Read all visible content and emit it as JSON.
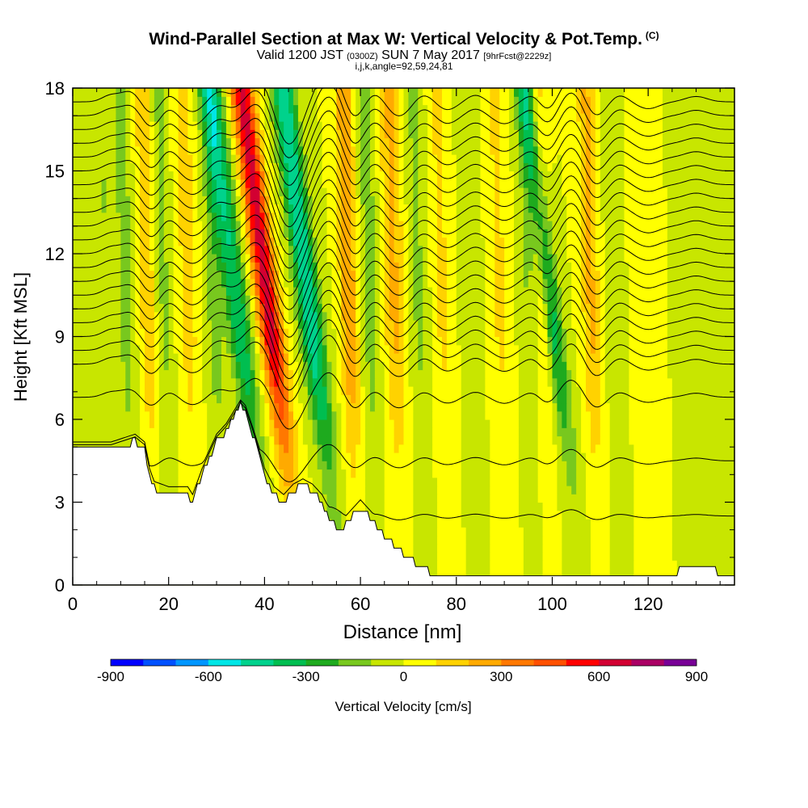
{
  "chart_data": {
    "type": "heatmap",
    "title": "Wind-Parallel Section at Max W: Vertical Velocity & Pot.Temp.",
    "title_mark": "(C)",
    "subtitle": {
      "part1": "Valid 1200 JST",
      "part2": "(0300Z)",
      "part3": "SUN 7 May 2017",
      "part4": "[9hrFcst@2229z]"
    },
    "subtitle2": "i,j,k,angle=92,59,24,81",
    "xlabel": "Distance [nm]",
    "ylabel": "Height [Kft MSL]",
    "xlim": [
      0,
      138
    ],
    "ylim": [
      0,
      18
    ],
    "x_ticks": [
      "0",
      "20",
      "40",
      "60",
      "80",
      "100",
      "120"
    ],
    "y_ticks": [
      "0",
      "3",
      "6",
      "9",
      "12",
      "15",
      "18"
    ],
    "colorbar": {
      "label": "Vertical Velocity [cm/s]",
      "range": [
        -900,
        900
      ],
      "tick_labels": [
        "-900",
        "-600",
        "-300",
        "0",
        "300",
        "600",
        "900"
      ],
      "colors": [
        "#0000ff",
        "#0050ff",
        "#0096ff",
        "#00e6e6",
        "#00d28c",
        "#00be50",
        "#1eaa1e",
        "#78c81e",
        "#c8e600",
        "#ffff00",
        "#ffd200",
        "#ffaa00",
        "#ff7800",
        "#ff5000",
        "#ff0000",
        "#d20032",
        "#aa0064",
        "#780096"
      ]
    },
    "velocity_columns": [
      {
        "x": 8,
        "w": 1.6,
        "amp": -100
      },
      {
        "x": 12,
        "w": 1.6,
        "amp": -150
      },
      {
        "x": 16.5,
        "w": 1.6,
        "amp": 180
      },
      {
        "x": 20,
        "w": 1.6,
        "amp": -120
      },
      {
        "x": 25,
        "w": 2,
        "amp": 150
      },
      {
        "x": 30.5,
        "w": 1.8,
        "amp": -150
      },
      {
        "x": 38.5,
        "w": 2.4,
        "amp": -400
      },
      {
        "x": 45,
        "w": 2.4,
        "amp": 650
      },
      {
        "x": 53.5,
        "w": 2.4,
        "amp": -500
      },
      {
        "x": 58.5,
        "w": 1.8,
        "amp": 300
      },
      {
        "x": 63,
        "w": 1.8,
        "amp": -150
      },
      {
        "x": 68,
        "w": 2.2,
        "amp": 220
      },
      {
        "x": 73,
        "w": 1.8,
        "amp": -120
      },
      {
        "x": 78,
        "w": 1.8,
        "amp": 120
      },
      {
        "x": 84,
        "w": 1.6,
        "amp": -100
      },
      {
        "x": 90,
        "w": 1.8,
        "amp": 120
      },
      {
        "x": 96,
        "w": 1.6,
        "amp": -110
      },
      {
        "x": 99,
        "w": 1.6,
        "amp": 150
      },
      {
        "x": 104,
        "w": 2,
        "amp": -350
      },
      {
        "x": 109,
        "w": 1.8,
        "amp": 220
      },
      {
        "x": 114,
        "w": 1.6,
        "amp": -100
      },
      {
        "x": 120,
        "w": 2,
        "amp": 100
      },
      {
        "x": 130,
        "w": 2,
        "amp": -80
      }
    ],
    "terrain": {
      "x": [
        0,
        8,
        13,
        15,
        16,
        17,
        20,
        24,
        25,
        27,
        30,
        32,
        34,
        35,
        36,
        38,
        40,
        42,
        44,
        46,
        48,
        50,
        52,
        54,
        56,
        58,
        60,
        62,
        64,
        66,
        68,
        70,
        72,
        74,
        76,
        80,
        100,
        110,
        124,
        127,
        132,
        138
      ],
      "height": [
        4.9,
        4.9,
        5.2,
        4.9,
        4.0,
        3.5,
        3.3,
        3.3,
        3.0,
        4.0,
        5.2,
        5.6,
        6.2,
        6.5,
        6.3,
        5.2,
        4.0,
        3.3,
        3.0,
        3.4,
        3.6,
        3.4,
        3.0,
        2.3,
        2.0,
        2.4,
        2.8,
        2.4,
        2.0,
        1.6,
        1.3,
        1.0,
        0.7,
        0.5,
        0.3,
        0.3,
        0.3,
        0.3,
        0.3,
        0.6,
        0.6,
        0.3
      ]
    },
    "isentropes_kft": [
      2.5,
      4.5,
      6.8,
      8.0,
      8.5,
      9.0,
      9.5,
      10.0,
      10.5,
      11.0,
      11.5,
      12.0,
      12.5,
      13.0,
      13.5,
      14.0,
      14.5,
      15.0,
      15.5,
      16.0,
      16.5,
      17.0,
      17.5
    ]
  }
}
